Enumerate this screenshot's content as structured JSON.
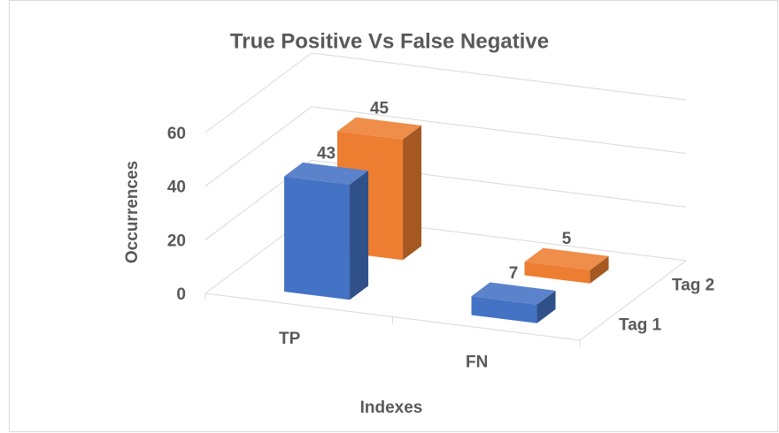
{
  "chart_data": {
    "type": "bar",
    "title": "True Positive Vs False Negative",
    "xlabel": "Indexes",
    "ylabel": "Occurrences",
    "categories": [
      "TP",
      "FN"
    ],
    "series": [
      {
        "name": "Tag 1",
        "color": "#4472c4",
        "values": [
          43,
          7
        ]
      },
      {
        "name": "Tag 2",
        "color": "#ed7d31",
        "values": [
          45,
          5
        ]
      }
    ],
    "ylim": [
      0,
      60
    ],
    "yticks": [
      0,
      20,
      40,
      60
    ],
    "grid": true
  }
}
